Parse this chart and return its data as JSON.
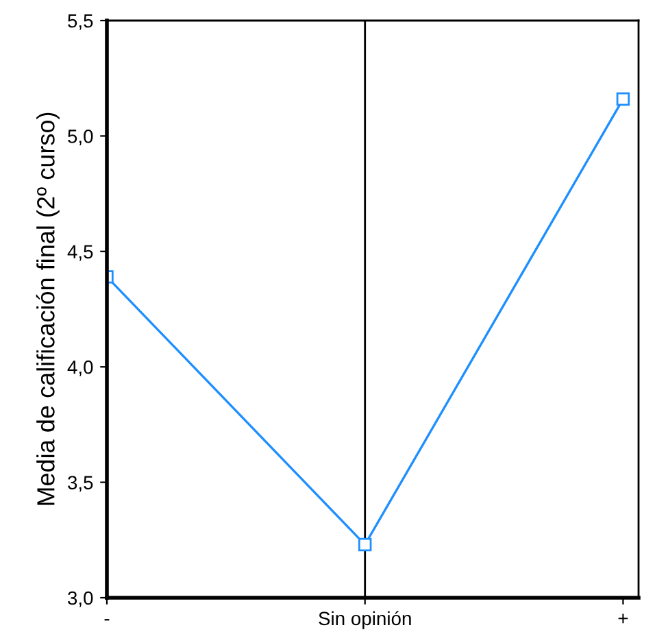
{
  "chart_data": {
    "type": "line",
    "ylabel": "Media de calificación final (2º curso)",
    "categories": [
      "-",
      "Sin opinión",
      "+"
    ],
    "series": [
      {
        "color": "#1e8fff",
        "values": [
          4.39,
          3.23,
          5.16
        ]
      }
    ],
    "ylim": [
      3.0,
      5.5
    ],
    "yticks": [
      {
        "value": 3.0,
        "label": "3,0"
      },
      {
        "value": 3.5,
        "label": "3,5"
      },
      {
        "value": 4.0,
        "label": "4,0"
      },
      {
        "value": 4.5,
        "label": "4,5"
      },
      {
        "value": 5.0,
        "label": "5,0"
      },
      {
        "value": 5.5,
        "label": "5,5"
      }
    ],
    "ref_lines": [
      {
        "axis": "x",
        "value": "Sin opinión",
        "color": "#000000"
      }
    ],
    "marker": "square",
    "grid": false,
    "legend": false
  }
}
